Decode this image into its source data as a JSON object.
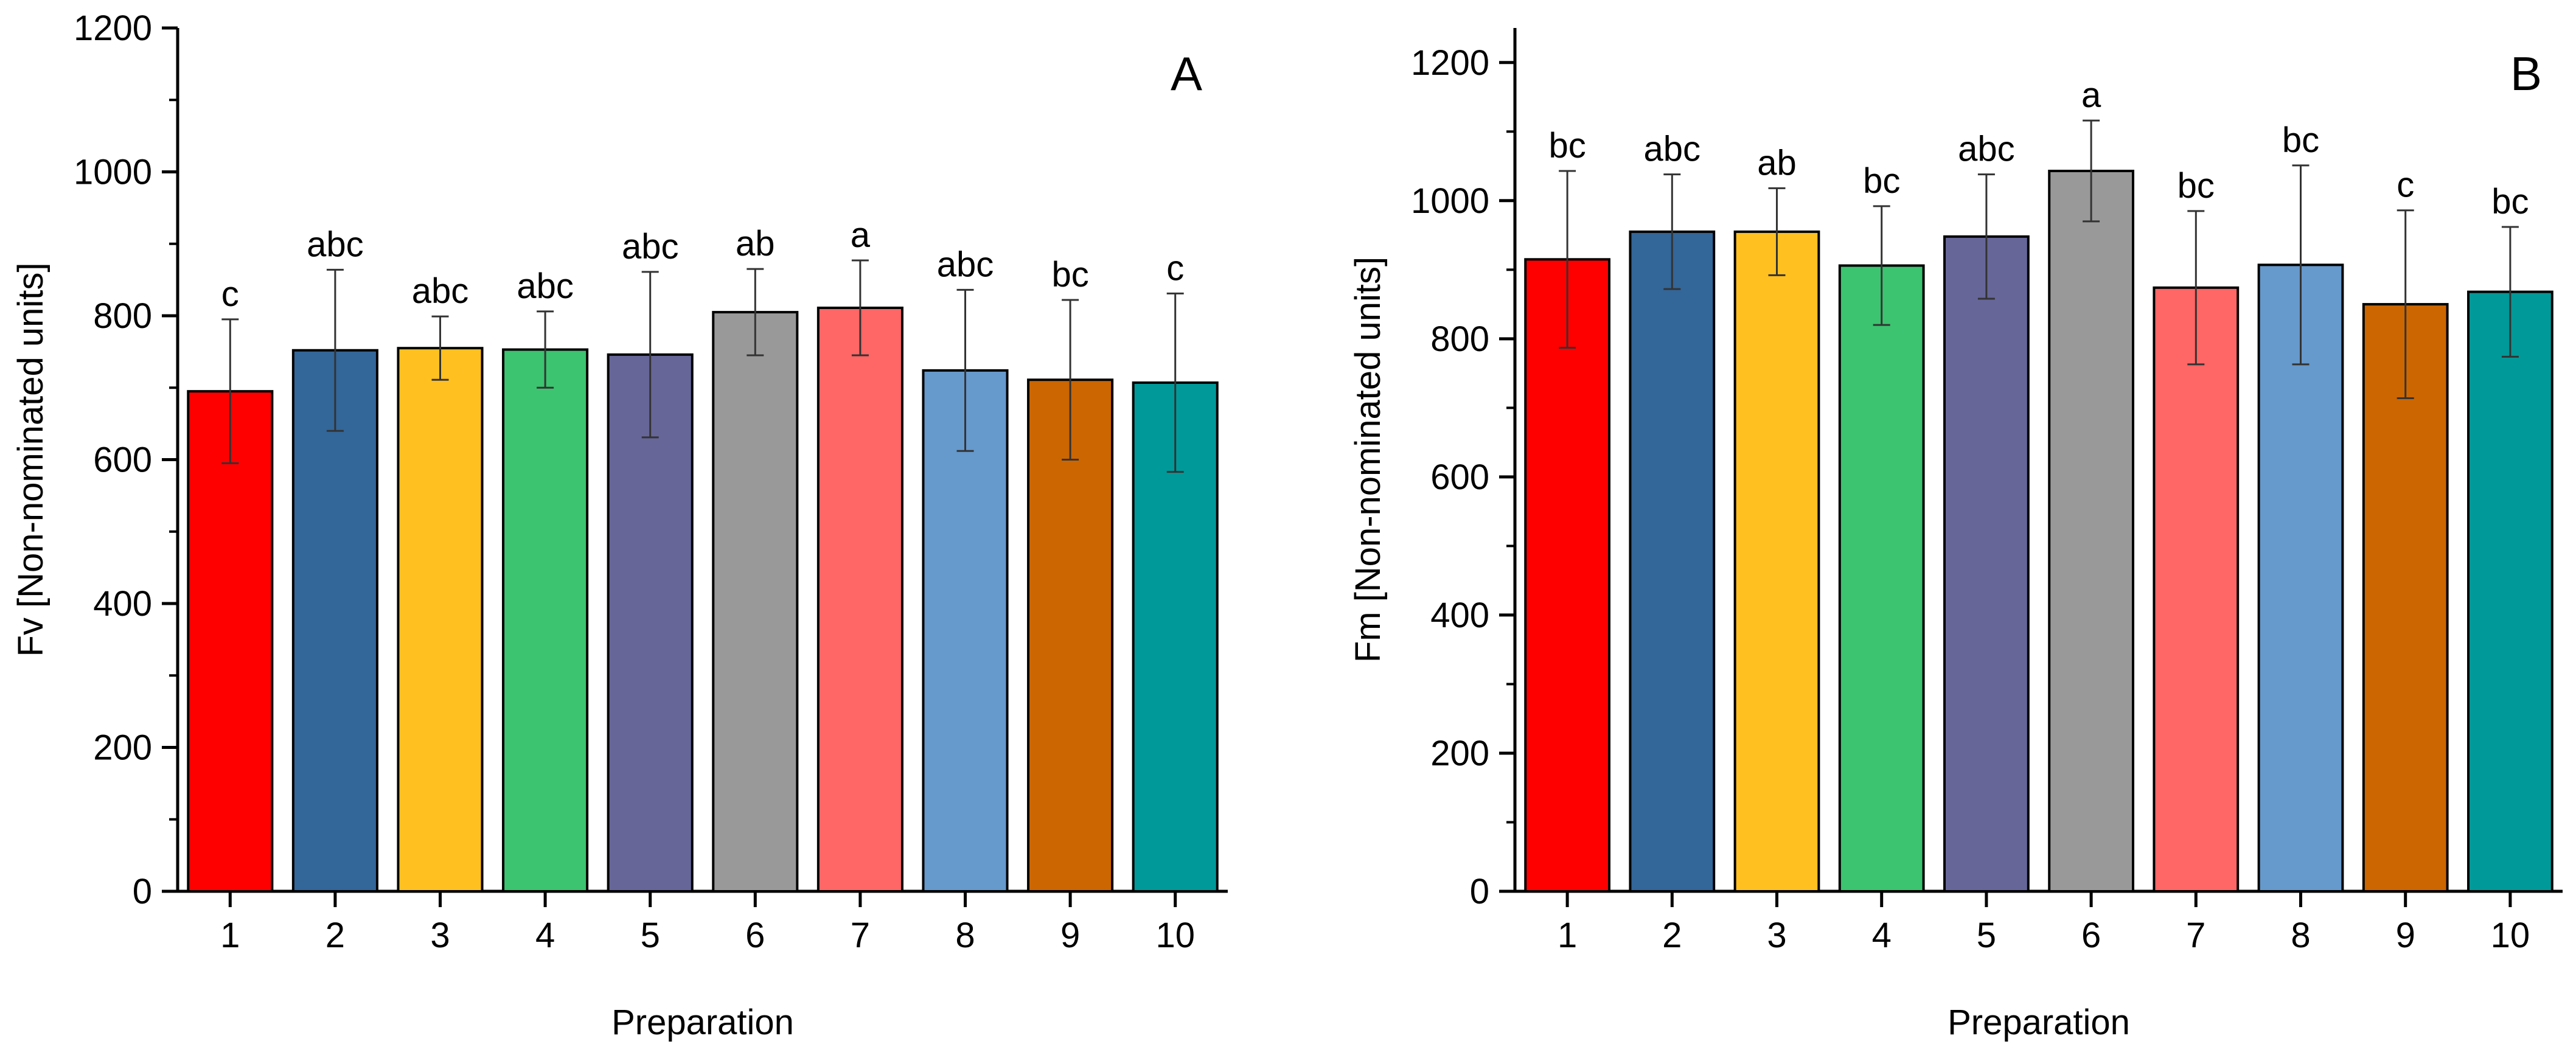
{
  "chart_data": [
    {
      "type": "bar",
      "panel_label": "A",
      "xlabel": "Preparation",
      "ylabel": "Fv [Non-nominated units]",
      "ylim": [
        0,
        1200
      ],
      "yticks": [
        0,
        200,
        400,
        600,
        800,
        1000,
        1200
      ],
      "categories": [
        "1",
        "2",
        "3",
        "4",
        "5",
        "6",
        "7",
        "8",
        "9",
        "10"
      ],
      "values": [
        695,
        752,
        755,
        753,
        746,
        805,
        811,
        724,
        711,
        707
      ],
      "errors": [
        100,
        112,
        44,
        53,
        115,
        60,
        66,
        112,
        111,
        124
      ],
      "letters": [
        "c",
        "abc",
        "abc",
        "abc",
        "abc",
        "ab",
        "a",
        "abc",
        "bc",
        "c"
      ],
      "colors": [
        "#ff0000",
        "#336699",
        "#ffc020",
        "#3cc470",
        "#666699",
        "#999999",
        "#ff6666",
        "#6699cc",
        "#cc6600",
        "#009999"
      ]
    },
    {
      "type": "bar",
      "panel_label": "B",
      "xlabel": "Preparation",
      "ylabel": "Fm [Non-nominated units]",
      "ylim": [
        0,
        1250
      ],
      "yticks": [
        0,
        200,
        400,
        600,
        800,
        1000,
        1200
      ],
      "categories": [
        "1",
        "2",
        "3",
        "4",
        "5",
        "6",
        "7",
        "8",
        "9",
        "10"
      ],
      "values": [
        915,
        955,
        955,
        906,
        948,
        1043,
        874,
        907,
        850,
        868
      ],
      "errors": [
        128,
        83,
        63,
        86,
        90,
        73,
        111,
        144,
        136,
        94
      ],
      "letters": [
        "bc",
        "abc",
        "ab",
        "bc",
        "abc",
        "a",
        "bc",
        "bc",
        "c",
        "bc"
      ],
      "colors": [
        "#ff0000",
        "#336699",
        "#ffc020",
        "#3cc470",
        "#666699",
        "#999999",
        "#ff6666",
        "#6699cc",
        "#cc6600",
        "#009999"
      ]
    }
  ]
}
